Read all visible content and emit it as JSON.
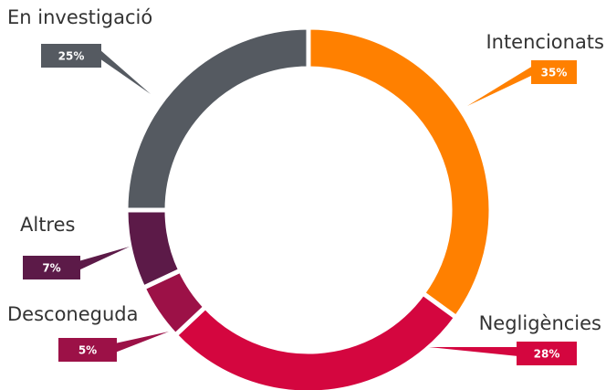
{
  "chart_data": {
    "type": "donut",
    "categories": [
      "Intencionats",
      "Negligències",
      "Desconeguda",
      "Altres",
      "En investigació"
    ],
    "values": [
      35,
      28,
      5,
      7,
      25
    ],
    "value_labels": [
      "35%",
      "28%",
      "5%",
      "7%",
      "25%"
    ],
    "colors": [
      "#ff8000",
      "#d4063f",
      "#9c1147",
      "#5c1a48",
      "#555a61"
    ]
  }
}
